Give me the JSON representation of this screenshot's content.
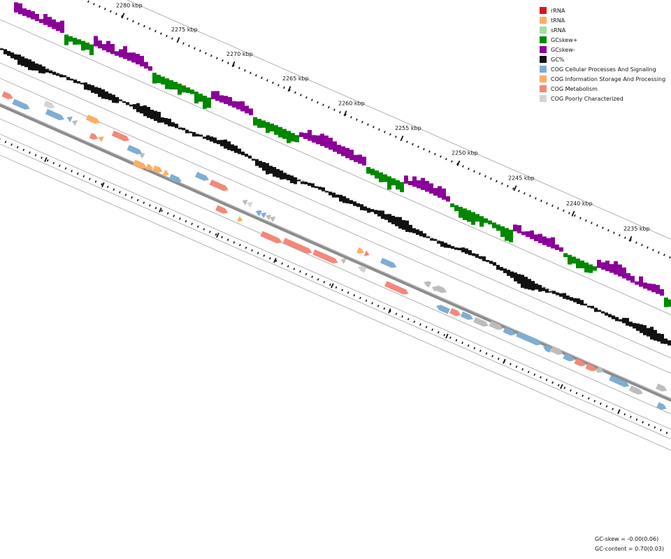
{
  "ruler": {
    "labels": [
      "2280 kbp",
      "2275 kbp",
      "2270 kbp",
      "2265 kbp",
      "2260 kbp",
      "2255 kbp",
      "2250 kbp",
      "2245 kbp",
      "2240 kbp",
      "2235 kbp"
    ]
  },
  "legend": [
    {
      "label": "rRNA",
      "color": "#d7191c"
    },
    {
      "label": "tRNA",
      "color": "#fdae61"
    },
    {
      "label": "sRNA",
      "color": "#a6dba0"
    },
    {
      "label": "GCskew+",
      "color": "#008800"
    },
    {
      "label": "GCskew-",
      "color": "#8b0099"
    },
    {
      "label": "GC%",
      "color": "#111111"
    },
    {
      "label": "COG Cellular Processes And Signaling",
      "color": "#7fadd4"
    },
    {
      "label": "COG Information Storage And Processing",
      "color": "#fdae61"
    },
    {
      "label": "COG Metabolism",
      "color": "#f4877a"
    },
    {
      "label": "COG Poorly Characterized",
      "color": "#d3d3d3"
    }
  ],
  "stats": {
    "gc_skew": "GC-skew = -0.00(0.06)",
    "gc_content": "GC-content = 0.70(0.03)"
  },
  "colors": {
    "gc_skew_pos": "#008800",
    "gc_skew_neg": "#8b0099",
    "gc_content": "#111111",
    "backbone": "#8c8c8c",
    "ring_line": "#9e9e9e",
    "unknown_gene": "#bdbdbd"
  }
}
